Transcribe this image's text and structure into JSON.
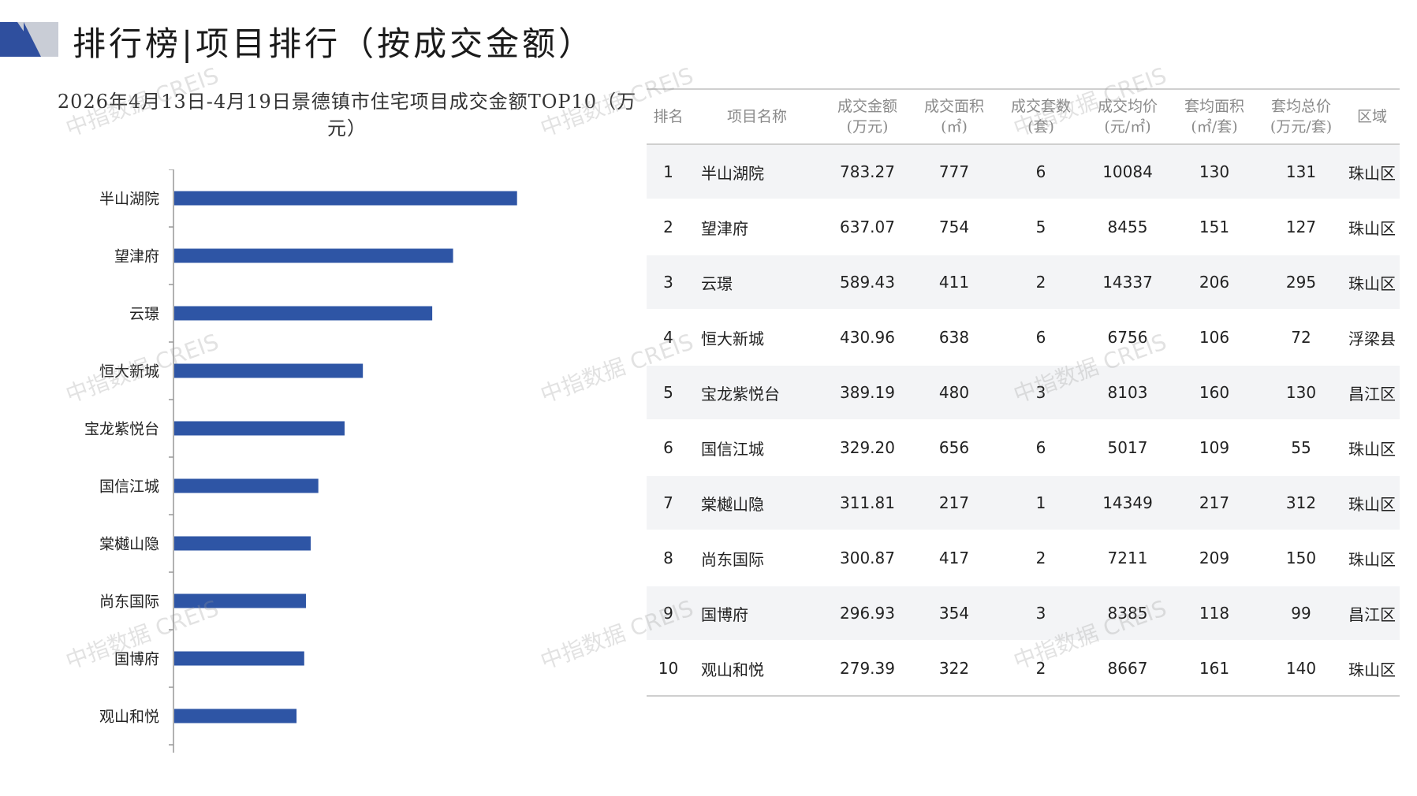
{
  "header": {
    "title": "排行榜|项目排行（按成交金额）",
    "logo_colors": [
      "#2f4f9e",
      "#c9cdd6"
    ]
  },
  "chart_data": {
    "type": "bar",
    "orientation": "horizontal",
    "title": "2026年4月13日-4月19日景德镇市住宅项目成交金额TOP10（万元）",
    "categories": [
      "半山湖院",
      "望津府",
      "云璟",
      "恒大新城",
      "宝龙紫悦台",
      "国信江城",
      "棠樾山隐",
      "尚东国际",
      "国博府",
      "观山和悦"
    ],
    "values": [
      783.27,
      637.07,
      589.43,
      430.96,
      389.19,
      329.2,
      311.81,
      300.87,
      296.93,
      279.39
    ],
    "bar_color": "#2e55a5",
    "xlim": [
      0,
      1000
    ],
    "grid": false,
    "legend": "none"
  },
  "table": {
    "headers": [
      {
        "line1": "排名",
        "line2": ""
      },
      {
        "line1": "项目名称",
        "line2": ""
      },
      {
        "line1": "成交金额",
        "line2": "(万元)"
      },
      {
        "line1": "成交面积",
        "line2": "(㎡)"
      },
      {
        "line1": "成交套数",
        "line2": "(套)"
      },
      {
        "line1": "成交均价",
        "line2": "(元/㎡)"
      },
      {
        "line1": "套均面积",
        "line2": "(㎡/套)"
      },
      {
        "line1": "套均总价",
        "line2": "(万元/套)"
      },
      {
        "line1": "区域",
        "line2": ""
      }
    ],
    "rows": [
      [
        "1",
        "半山湖院",
        "783.27",
        "777",
        "6",
        "10084",
        "130",
        "131",
        "珠山区"
      ],
      [
        "2",
        "望津府",
        "637.07",
        "754",
        "5",
        "8455",
        "151",
        "127",
        "珠山区"
      ],
      [
        "3",
        "云璟",
        "589.43",
        "411",
        "2",
        "14337",
        "206",
        "295",
        "珠山区"
      ],
      [
        "4",
        "恒大新城",
        "430.96",
        "638",
        "6",
        "6756",
        "106",
        "72",
        "浮梁县"
      ],
      [
        "5",
        "宝龙紫悦台",
        "389.19",
        "480",
        "3",
        "8103",
        "160",
        "130",
        "昌江区"
      ],
      [
        "6",
        "国信江城",
        "329.20",
        "656",
        "6",
        "5017",
        "109",
        "55",
        "珠山区"
      ],
      [
        "7",
        "棠樾山隐",
        "311.81",
        "217",
        "1",
        "14349",
        "217",
        "312",
        "珠山区"
      ],
      [
        "8",
        "尚东国际",
        "300.87",
        "417",
        "2",
        "7211",
        "209",
        "150",
        "珠山区"
      ],
      [
        "9",
        "国博府",
        "296.93",
        "354",
        "3",
        "8385",
        "118",
        "99",
        "昌江区"
      ],
      [
        "10",
        "观山和悦",
        "279.39",
        "322",
        "2",
        "8667",
        "161",
        "140",
        "珠山区"
      ]
    ]
  },
  "watermark": "中指数据 CREIS"
}
